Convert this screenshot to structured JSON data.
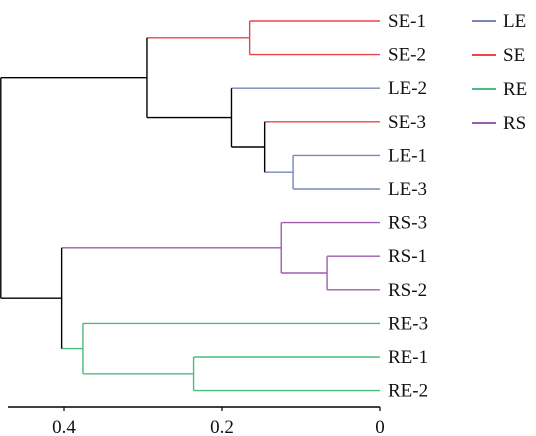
{
  "chart_data": {
    "type": "dendrogram",
    "orientation": "horizontal",
    "xlim": [
      0.48,
      0
    ],
    "x_ticks": [
      {
        "value": 0.4,
        "label": "0.4"
      },
      {
        "value": 0.2,
        "label": "0.2"
      },
      {
        "value": 0,
        "label": "0"
      }
    ],
    "leaves": [
      {
        "label": "SE-1",
        "group": "SE"
      },
      {
        "label": "SE-2",
        "group": "SE"
      },
      {
        "label": "LE-2",
        "group": "LE"
      },
      {
        "label": "SE-3",
        "group": "SE"
      },
      {
        "label": "LE-1",
        "group": "LE"
      },
      {
        "label": "LE-3",
        "group": "LE"
      },
      {
        "label": "RS-3",
        "group": "RS"
      },
      {
        "label": "RS-1",
        "group": "RS"
      },
      {
        "label": "RS-2",
        "group": "RS"
      },
      {
        "label": "RE-3",
        "group": "RE"
      },
      {
        "label": "RE-1",
        "group": "RE"
      },
      {
        "label": "RE-2",
        "group": "RE"
      }
    ],
    "merges": [
      {
        "id": "m1",
        "height": 0.11,
        "children": [
          "LE-1",
          "LE-3"
        ]
      },
      {
        "id": "m2",
        "height": 0.146,
        "children": [
          "SE-3",
          "m1"
        ]
      },
      {
        "id": "m3",
        "height": 0.188,
        "children": [
          "LE-2",
          "m2"
        ]
      },
      {
        "id": "m4",
        "height": 0.165,
        "children": [
          "SE-1",
          "SE-2"
        ]
      },
      {
        "id": "m5",
        "height": 0.295,
        "children": [
          "m4",
          "m3"
        ]
      },
      {
        "id": "m6",
        "height": 0.067,
        "children": [
          "RS-1",
          "RS-2"
        ]
      },
      {
        "id": "m7",
        "height": 0.125,
        "children": [
          "RS-3",
          "m6"
        ]
      },
      {
        "id": "m8",
        "height": 0.236,
        "children": [
          "RE-1",
          "RE-2"
        ]
      },
      {
        "id": "m9",
        "height": 0.376,
        "children": [
          "RE-3",
          "m8"
        ]
      },
      {
        "id": "m10",
        "height": 0.403,
        "children": [
          "m7",
          "m9"
        ]
      },
      {
        "id": "m11",
        "height": 0.48,
        "children": [
          "m5",
          "m10"
        ]
      }
    ],
    "legend": {
      "placement": "top-right",
      "entries": [
        {
          "label": "LE",
          "color": "#7a86b8"
        },
        {
          "label": "SE",
          "color": "#e8474b"
        },
        {
          "label": "RE",
          "color": "#4cbb7f"
        },
        {
          "label": "RS",
          "color": "#9c5fb0"
        }
      ]
    },
    "link_color_mixed": "#000000"
  }
}
